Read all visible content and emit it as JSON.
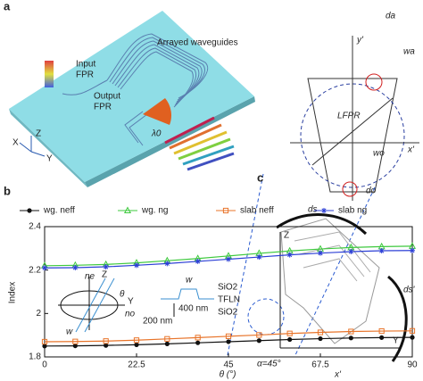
{
  "panels": {
    "a": {
      "label": "a",
      "arrayed": "Arrayed waveguides",
      "input": [
        "Input",
        "FPR"
      ],
      "output": [
        "Output",
        "FPR"
      ],
      "lambda": "λ0",
      "axes": [
        "X",
        "Z",
        "Y"
      ]
    },
    "top_right": {
      "y_axis": "y'",
      "x_axis": "x'",
      "length": "LFPR",
      "da": "da",
      "wa": "wa",
      "wo": "wo",
      "do": "do"
    },
    "b": {
      "label": "b"
    },
    "c": {
      "label": "c",
      "ds": "ds",
      "ds2": "ds'",
      "z": "Z",
      "y": "Y",
      "alpha": "α=45°",
      "xp": "x'"
    }
  },
  "chart_data": {
    "type": "line",
    "x": [
      0,
      7.5,
      15,
      22.5,
      30,
      37.5,
      45,
      52.5,
      60,
      67.5,
      75,
      82.5,
      90
    ],
    "xlim": [
      0,
      90
    ],
    "xticks": [
      0,
      22.5,
      45,
      67.5,
      90
    ],
    "ylim": [
      1.8,
      2.4
    ],
    "yticks": [
      1.8,
      2,
      2.2,
      2.4
    ],
    "xlabel": "θ (°)",
    "ylabel": "Index",
    "series": [
      {
        "name": "wg. neff",
        "color": "#111111",
        "marker": "circle",
        "values": [
          1.85,
          1.851,
          1.853,
          1.856,
          1.86,
          1.865,
          1.87,
          1.875,
          1.88,
          1.884,
          1.887,
          1.889,
          1.89
        ]
      },
      {
        "name": "wg. ng",
        "color": "#3ec93e",
        "marker": "triangle",
        "values": [
          2.22,
          2.222,
          2.226,
          2.233,
          2.243,
          2.253,
          2.265,
          2.277,
          2.288,
          2.297,
          2.304,
          2.308,
          2.31
        ]
      },
      {
        "name": "slab neff",
        "color": "#e8742a",
        "marker": "square",
        "values": [
          1.87,
          1.871,
          1.873,
          1.877,
          1.883,
          1.889,
          1.895,
          1.901,
          1.908,
          1.913,
          1.917,
          1.919,
          1.92
        ]
      },
      {
        "name": "slab ng",
        "color": "#2c3fd6",
        "marker": "star",
        "values": [
          2.21,
          2.211,
          2.215,
          2.222,
          2.23,
          2.24,
          2.25,
          2.26,
          2.27,
          2.278,
          2.285,
          2.289,
          2.29
        ]
      }
    ],
    "annotations": [
      "ne",
      "Z",
      "θ",
      "Y",
      "no",
      "w",
      "w",
      "SiO2",
      "TFLN",
      "SiO2",
      "400 nm",
      "200 nm"
    ]
  }
}
